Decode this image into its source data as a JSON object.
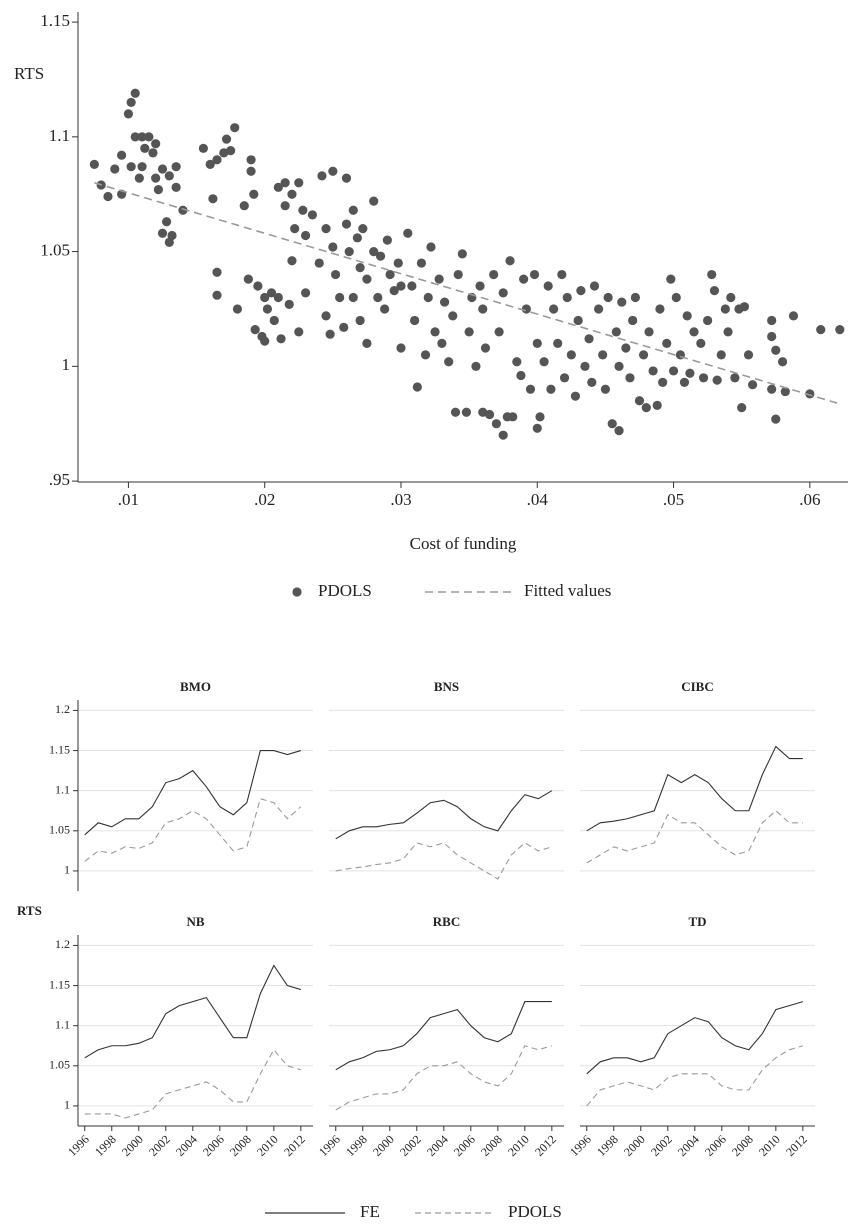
{
  "chart_data": [
    {
      "type": "scatter",
      "ylabel": "RTS",
      "xlabel": "Cost of funding",
      "xlim": [
        0.0063,
        0.0628
      ],
      "ylim": [
        0.9496,
        1.1544
      ],
      "xticks": [
        {
          "value": 0.01,
          "label": ".01"
        },
        {
          "value": 0.02,
          "label": ".02"
        },
        {
          "value": 0.03,
          "label": ".03"
        },
        {
          "value": 0.04,
          "label": ".04"
        },
        {
          "value": 0.05,
          "label": ".05"
        },
        {
          "value": 0.06,
          "label": ".06"
        }
      ],
      "yticks": [
        {
          "value": 0.95,
          "label": ".95"
        },
        1,
        1.05,
        1.1,
        1.15
      ],
      "series": [
        {
          "name": "PDOLS",
          "color": "#555555",
          "mode": "markers",
          "x": [
            0.0075,
            0.008,
            0.0085,
            0.009,
            0.0095,
            0.0095,
            0.01,
            0.0102,
            0.0105,
            0.0105,
            0.011,
            0.011,
            0.0112,
            0.0115,
            0.0118,
            0.012,
            0.012,
            0.0122,
            0.0125,
            0.0125,
            0.0128,
            0.013,
            0.013,
            0.0132,
            0.0135,
            0.0135,
            0.014,
            0.0102,
            0.0108,
            0.0155,
            0.016,
            0.0162,
            0.0165,
            0.0165,
            0.0165,
            0.017,
            0.0172,
            0.0175,
            0.0178,
            0.018,
            0.0185,
            0.0188,
            0.019,
            0.019,
            0.0192,
            0.0193,
            0.0195,
            0.0198,
            0.02,
            0.02,
            0.0202,
            0.0205,
            0.0207,
            0.021,
            0.021,
            0.0212,
            0.0215,
            0.0215,
            0.0218,
            0.022,
            0.022,
            0.0222,
            0.0225,
            0.0225,
            0.0228,
            0.023,
            0.023,
            0.0235,
            0.024,
            0.0242,
            0.0245,
            0.0245,
            0.0248,
            0.025,
            0.025,
            0.0252,
            0.0255,
            0.0258,
            0.026,
            0.026,
            0.0262,
            0.0265,
            0.0265,
            0.0268,
            0.027,
            0.027,
            0.0272,
            0.0275,
            0.0275,
            0.028,
            0.028,
            0.0283,
            0.0285,
            0.0288,
            0.029,
            0.0292,
            0.0295,
            0.0298,
            0.03,
            0.03,
            0.0305,
            0.0308,
            0.031,
            0.0312,
            0.0315,
            0.0318,
            0.032,
            0.0322,
            0.0325,
            0.0328,
            0.033,
            0.0332,
            0.0335,
            0.0338,
            0.034,
            0.0342,
            0.0345,
            0.0348,
            0.035,
            0.0352,
            0.0355,
            0.0358,
            0.036,
            0.036,
            0.0362,
            0.0365,
            0.0368,
            0.037,
            0.0372,
            0.0375,
            0.0375,
            0.0378,
            0.038,
            0.0382,
            0.0385,
            0.0388,
            0.039,
            0.0392,
            0.0395,
            0.0398,
            0.04,
            0.04,
            0.0402,
            0.0405,
            0.0408,
            0.041,
            0.0412,
            0.0415,
            0.0418,
            0.042,
            0.0422,
            0.0425,
            0.0428,
            0.043,
            0.0432,
            0.0435,
            0.0438,
            0.044,
            0.0442,
            0.0445,
            0.0448,
            0.045,
            0.0452,
            0.0455,
            0.0458,
            0.046,
            0.046,
            0.0462,
            0.0465,
            0.0468,
            0.047,
            0.0472,
            0.0475,
            0.0478,
            0.048,
            0.0482,
            0.0485,
            0.0488,
            0.049,
            0.0492,
            0.0495,
            0.0498,
            0.05,
            0.0502,
            0.0505,
            0.0508,
            0.051,
            0.0512,
            0.0515,
            0.052,
            0.0522,
            0.0525,
            0.0528,
            0.053,
            0.0532,
            0.0535,
            0.0538,
            0.054,
            0.0542,
            0.0545,
            0.0548,
            0.055,
            0.0552,
            0.0555,
            0.0558,
            0.0572,
            0.0572,
            0.0575,
            0.0575,
            0.058,
            0.0582,
            0.0588,
            0.06,
            0.0608,
            0.0622,
            0.0572
          ],
          "values": [
            1.088,
            1.079,
            1.074,
            1.086,
            1.092,
            1.075,
            1.11,
            1.115,
            1.119,
            1.1,
            1.1,
            1.087,
            1.095,
            1.1,
            1.093,
            1.082,
            1.097,
            1.077,
            1.058,
            1.086,
            1.063,
            1.054,
            1.083,
            1.057,
            1.078,
            1.087,
            1.068,
            1.087,
            1.082,
            1.095,
            1.088,
            1.073,
            1.09,
            1.041,
            1.031,
            1.093,
            1.099,
            1.094,
            1.104,
            1.025,
            1.07,
            1.038,
            1.09,
            1.085,
            1.075,
            1.016,
            1.035,
            1.013,
            1.03,
            1.011,
            1.025,
            1.032,
            1.02,
            1.078,
            1.03,
            1.012,
            1.08,
            1.07,
            1.027,
            1.046,
            1.075,
            1.06,
            1.08,
            1.015,
            1.068,
            1.057,
            1.032,
            1.066,
            1.045,
            1.083,
            1.06,
            1.022,
            1.014,
            1.052,
            1.085,
            1.04,
            1.03,
            1.017,
            1.082,
            1.062,
            1.05,
            1.068,
            1.03,
            1.056,
            1.043,
            1.02,
            1.06,
            1.038,
            1.01,
            1.05,
            1.072,
            1.03,
            1.048,
            1.025,
            1.055,
            1.04,
            1.033,
            1.045,
            1.035,
            1.008,
            1.058,
            1.035,
            1.02,
            0.991,
            1.045,
            1.005,
            1.03,
            1.052,
            1.015,
            1.038,
            1.01,
            1.028,
            1.002,
            1.022,
            0.98,
            1.04,
            1.049,
            0.98,
            1.015,
            1.03,
            1.0,
            1.035,
            0.98,
            1.025,
            1.008,
            0.979,
            1.04,
            0.975,
            1.015,
            0.97,
            1.032,
            0.978,
            1.046,
            0.978,
            1.002,
            0.996,
            1.038,
            1.025,
            0.99,
            1.04,
            0.973,
            1.01,
            0.978,
            1.002,
            1.035,
            0.99,
            1.025,
            1.01,
            1.04,
            0.995,
            1.03,
            1.005,
            0.987,
            1.02,
            1.033,
            1.0,
            1.012,
            0.993,
            1.035,
            1.025,
            1.005,
            0.99,
            1.03,
            0.975,
            1.015,
            0.972,
            1.0,
            1.028,
            1.008,
            0.995,
            1.02,
            1.03,
            0.985,
            1.005,
            0.982,
            1.015,
            0.998,
            0.983,
            1.025,
            0.993,
            1.01,
            1.038,
            0.998,
            1.03,
            1.005,
            0.993,
            1.022,
            0.997,
            1.015,
            1.01,
            0.995,
            1.02,
            1.04,
            1.033,
            0.994,
            1.005,
            1.025,
            1.015,
            1.03,
            0.995,
            1.025,
            0.982,
            1.026,
            1.005,
            0.992,
            1.02,
            1.013,
            0.977,
            1.007,
            1.002,
            0.989,
            1.022,
            0.988,
            1.016,
            1.016,
            0.99
          ]
        },
        {
          "name": "Fitted values",
          "color": "#9a9a9a",
          "mode": "line",
          "dash": "dashed",
          "x": [
            0.0075,
            0.062
          ],
          "values": [
            1.08,
            0.984
          ]
        }
      ]
    },
    {
      "type": "line",
      "ylabel": "RTS",
      "x": [
        1996,
        1997,
        1998,
        1999,
        2000,
        2001,
        2002,
        2003,
        2004,
        2005,
        2006,
        2007,
        2008,
        2009,
        2010,
        2011,
        2012
      ],
      "xlim": [
        1995.5,
        2012.9
      ],
      "ylim": [
        0.975,
        1.213
      ],
      "xticks": [
        1996,
        1998,
        2000,
        2002,
        2004,
        2006,
        2008,
        2010,
        2012
      ],
      "yticks": [
        1,
        1.05,
        1.1,
        1.15,
        1.2
      ],
      "grid": true,
      "panels": [
        {
          "title": "BMO",
          "series": [
            {
              "name": "FE",
              "color": "#333333",
              "dash": "solid",
              "values": [
                1.045,
                1.06,
                1.055,
                1.065,
                1.065,
                1.08,
                1.11,
                1.115,
                1.125,
                1.105,
                1.08,
                1.07,
                1.085,
                1.15,
                1.15,
                1.145,
                1.15
              ]
            },
            {
              "name": "PDOLS",
              "color": "#9a9a9a",
              "dash": "dashed",
              "values": [
                1.012,
                1.025,
                1.022,
                1.03,
                1.028,
                1.035,
                1.06,
                1.065,
                1.075,
                1.065,
                1.045,
                1.025,
                1.03,
                1.09,
                1.085,
                1.065,
                1.08
              ]
            }
          ]
        },
        {
          "title": "BNS",
          "series": [
            {
              "name": "FE",
              "color": "#333333",
              "dash": "solid",
              "values": [
                1.04,
                1.05,
                1.055,
                1.055,
                1.058,
                1.06,
                1.072,
                1.085,
                1.088,
                1.08,
                1.065,
                1.055,
                1.05,
                1.075,
                1.095,
                1.09,
                1.1
              ]
            },
            {
              "name": "PDOLS",
              "color": "#9a9a9a",
              "dash": "dashed",
              "values": [
                1.0,
                1.003,
                1.005,
                1.008,
                1.01,
                1.015,
                1.035,
                1.03,
                1.035,
                1.02,
                1.01,
                1.0,
                0.99,
                1.02,
                1.035,
                1.025,
                1.03
              ]
            }
          ]
        },
        {
          "title": "CIBC",
          "series": [
            {
              "name": "FE",
              "color": "#333333",
              "dash": "solid",
              "values": [
                1.05,
                1.06,
                1.062,
                1.065,
                1.07,
                1.075,
                1.12,
                1.11,
                1.12,
                1.11,
                1.09,
                1.075,
                1.075,
                1.12,
                1.155,
                1.14,
                1.14
              ]
            },
            {
              "name": "PDOLS",
              "color": "#9a9a9a",
              "dash": "dashed",
              "values": [
                1.01,
                1.02,
                1.03,
                1.025,
                1.03,
                1.035,
                1.07,
                1.06,
                1.06,
                1.045,
                1.03,
                1.02,
                1.025,
                1.06,
                1.075,
                1.06,
                1.06
              ]
            }
          ]
        },
        {
          "title": "NB",
          "series": [
            {
              "name": "FE",
              "color": "#333333",
              "dash": "solid",
              "values": [
                1.06,
                1.07,
                1.075,
                1.075,
                1.078,
                1.085,
                1.115,
                1.125,
                1.13,
                1.135,
                1.11,
                1.085,
                1.085,
                1.14,
                1.175,
                1.15,
                1.145
              ]
            },
            {
              "name": "PDOLS",
              "color": "#9a9a9a",
              "dash": "dashed",
              "values": [
                0.99,
                0.99,
                0.99,
                0.985,
                0.99,
                0.995,
                1.015,
                1.02,
                1.025,
                1.03,
                1.02,
                1.005,
                1.005,
                1.04,
                1.07,
                1.05,
                1.045
              ]
            }
          ]
        },
        {
          "title": "RBC",
          "series": [
            {
              "name": "FE",
              "color": "#333333",
              "dash": "solid",
              "values": [
                1.045,
                1.055,
                1.06,
                1.068,
                1.07,
                1.075,
                1.09,
                1.11,
                1.115,
                1.12,
                1.1,
                1.085,
                1.08,
                1.09,
                1.13,
                1.13,
                1.13
              ]
            },
            {
              "name": "PDOLS",
              "color": "#9a9a9a",
              "dash": "dashed",
              "values": [
                0.995,
                1.005,
                1.01,
                1.015,
                1.015,
                1.02,
                1.04,
                1.05,
                1.05,
                1.055,
                1.04,
                1.03,
                1.025,
                1.04,
                1.075,
                1.07,
                1.075
              ]
            }
          ]
        },
        {
          "title": "TD",
          "series": [
            {
              "name": "FE",
              "color": "#333333",
              "dash": "solid",
              "values": [
                1.04,
                1.055,
                1.06,
                1.06,
                1.055,
                1.06,
                1.09,
                1.1,
                1.11,
                1.105,
                1.085,
                1.075,
                1.07,
                1.09,
                1.12,
                1.125,
                1.13
              ]
            },
            {
              "name": "PDOLS",
              "color": "#9a9a9a",
              "dash": "dashed",
              "values": [
                1.0,
                1.02,
                1.025,
                1.03,
                1.025,
                1.02,
                1.035,
                1.04,
                1.04,
                1.04,
                1.025,
                1.02,
                1.02,
                1.045,
                1.06,
                1.07,
                1.075
              ]
            }
          ]
        }
      ]
    }
  ]
}
